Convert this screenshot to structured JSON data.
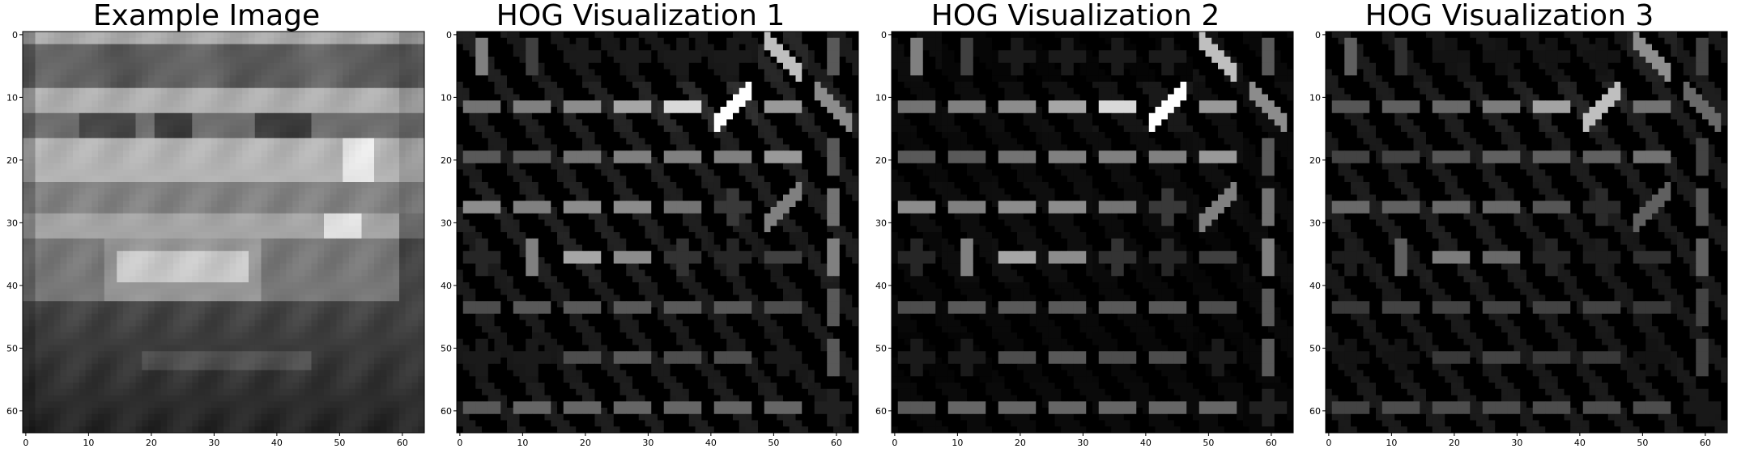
{
  "colors": {
    "background": "#ffffff",
    "axis": "#000000",
    "hog_bg": "#000000"
  },
  "panels": [
    {
      "title": "Example Image",
      "kind": "grayscale-image",
      "x_ticks": [
        "0",
        "10",
        "20",
        "30",
        "40",
        "50",
        "60"
      ],
      "y_ticks": [
        "0",
        "10",
        "20",
        "30",
        "40",
        "50",
        "60"
      ]
    },
    {
      "title": "HOG Visualization 1",
      "kind": "hog",
      "x_ticks": [
        "0",
        "10",
        "20",
        "30",
        "40",
        "50",
        "60"
      ],
      "y_ticks": [
        "0",
        "10",
        "20",
        "30",
        "40",
        "50",
        "60"
      ]
    },
    {
      "title": "HOG Visualization 2",
      "kind": "hog",
      "x_ticks": [
        "0",
        "10",
        "20",
        "30",
        "40",
        "50",
        "60"
      ],
      "y_ticks": [
        "0",
        "10",
        "20",
        "30",
        "40",
        "50",
        "60"
      ]
    },
    {
      "title": "HOG Visualization 3",
      "kind": "hog",
      "x_ticks": [
        "0",
        "10",
        "20",
        "30",
        "40",
        "50",
        "60"
      ],
      "y_ticks": [
        "0",
        "10",
        "20",
        "30",
        "40",
        "50",
        "60"
      ]
    }
  ]
}
